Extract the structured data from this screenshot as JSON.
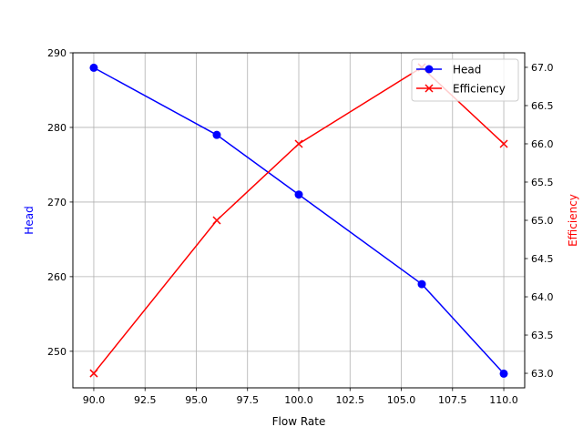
{
  "chart_data": {
    "type": "line",
    "title": "",
    "xlabel": "Flow Rate",
    "ylabel": "Head",
    "ylabel_right": "Efficiency",
    "x": [
      90,
      96,
      100,
      106,
      110
    ],
    "xlim": [
      88.98,
      111.02
    ],
    "x_ticks": [
      "90.0",
      "92.5",
      "95.0",
      "97.5",
      "100.0",
      "102.5",
      "105.0",
      "107.5",
      "110.0"
    ],
    "x_tick_values": [
      90,
      92.5,
      95,
      97.5,
      100,
      102.5,
      105,
      107.5,
      110
    ],
    "ylim": [
      245.1,
      290
    ],
    "y_ticks": [
      "250",
      "260",
      "270",
      "280",
      "290"
    ],
    "y_tick_values": [
      250,
      260,
      270,
      280,
      290
    ],
    "ylim_right": [
      62.81,
      67.19
    ],
    "y_ticks_right": [
      "63.0",
      "63.5",
      "64.0",
      "64.5",
      "65.0",
      "65.5",
      "66.0",
      "66.5",
      "67.0"
    ],
    "y_tick_values_right": [
      63,
      63.5,
      64,
      64.5,
      65,
      65.5,
      66,
      66.5,
      67
    ],
    "grid": true,
    "legend_position": "upper right",
    "series": [
      {
        "name": "Head",
        "axis": "left",
        "color": "#0000ff",
        "marker": "circle",
        "values": [
          288,
          279,
          271,
          259,
          247
        ]
      },
      {
        "name": "Efficiency",
        "axis": "right",
        "color": "#ff0000",
        "marker": "x",
        "values": [
          63,
          65,
          66,
          67,
          66
        ]
      }
    ]
  },
  "colors": {
    "head": "#0000ff",
    "efficiency": "#ff0000",
    "grid": "#b0b0b0",
    "axes": "#000000"
  }
}
